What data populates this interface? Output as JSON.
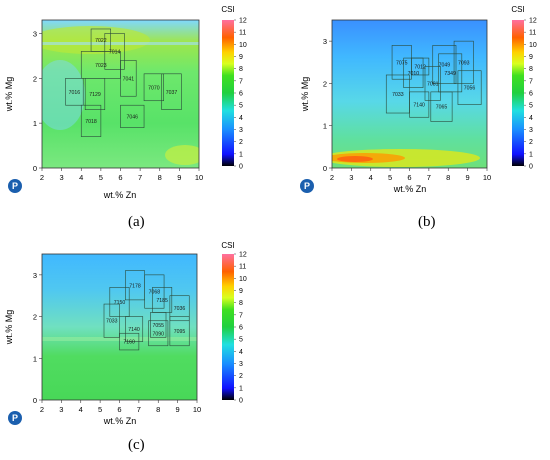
{
  "chart_data": [
    {
      "panel": "(a)",
      "type": "heatmap",
      "xlabel": "wt.% Zn",
      "ylabel": "wt.% Mg",
      "xlim": [
        2,
        10
      ],
      "ylim": [
        0,
        3.3
      ],
      "xticks": [
        2,
        3,
        4,
        5,
        6,
        7,
        8,
        9,
        10
      ],
      "yticks": [
        0,
        1,
        2,
        3
      ],
      "colorbar": {
        "label": "CSI",
        "min": 0,
        "max": 12,
        "ticks": [
          0,
          1,
          2,
          3,
          4,
          5,
          6,
          7,
          8,
          9,
          10,
          11,
          12
        ]
      },
      "alloys": [
        {
          "name": "7022",
          "x0": 4.5,
          "x1": 5.5,
          "y0": 2.6,
          "y1": 3.1
        },
        {
          "name": "7014",
          "x0": 5.2,
          "x1": 6.2,
          "y0": 2.2,
          "y1": 3.0
        },
        {
          "name": "7023",
          "x0": 4.0,
          "x1": 6.0,
          "y0": 2.0,
          "y1": 2.6
        },
        {
          "name": "7041",
          "x0": 6.0,
          "x1": 6.8,
          "y0": 1.6,
          "y1": 2.4
        },
        {
          "name": "7070",
          "x0": 7.2,
          "x1": 8.2,
          "y0": 1.5,
          "y1": 2.1
        },
        {
          "name": "7016",
          "x0": 3.2,
          "x1": 4.1,
          "y0": 1.4,
          "y1": 2.0
        },
        {
          "name": "7129",
          "x0": 4.2,
          "x1": 5.2,
          "y0": 1.3,
          "y1": 2.0
        },
        {
          "name": "7037",
          "x0": 8.1,
          "x1": 9.1,
          "y0": 1.3,
          "y1": 2.1
        },
        {
          "name": "7018",
          "x0": 4.0,
          "x1": 5.0,
          "y0": 0.7,
          "y1": 1.4
        },
        {
          "name": "7046",
          "x0": 6.0,
          "x1": 7.2,
          "y0": 0.9,
          "y1": 1.4
        }
      ]
    },
    {
      "panel": "(b)",
      "type": "heatmap",
      "xlabel": "wt.% Zn",
      "ylabel": "wt.% Mg",
      "xlim": [
        2,
        10
      ],
      "ylim": [
        0,
        3.5
      ],
      "xticks": [
        2,
        3,
        4,
        5,
        6,
        7,
        8,
        9,
        10
      ],
      "yticks": [
        0,
        1,
        2,
        3
      ],
      "colorbar": {
        "label": "CSI",
        "min": 0,
        "max": 12,
        "ticks": [
          0,
          1,
          2,
          3,
          4,
          5,
          6,
          7,
          8,
          9,
          10,
          11,
          12
        ]
      },
      "alloys": [
        {
          "name": "7075",
          "x0": 5.1,
          "x1": 6.1,
          "y0": 2.1,
          "y1": 2.9
        },
        {
          "name": "7049",
          "x0": 7.2,
          "x1": 8.4,
          "y0": 2.0,
          "y1": 2.9
        },
        {
          "name": "7093",
          "x0": 8.3,
          "x1": 9.3,
          "y0": 2.0,
          "y1": 3.0
        },
        {
          "name": "7012",
          "x0": 6.1,
          "x1": 7.0,
          "y0": 2.2,
          "y1": 2.6
        },
        {
          "name": "7010",
          "x0": 5.7,
          "x1": 6.7,
          "y0": 1.9,
          "y1": 2.6
        },
        {
          "name": "7081",
          "x0": 6.8,
          "x1": 7.6,
          "y0": 1.6,
          "y1": 2.4
        },
        {
          "name": "7349",
          "x0": 7.5,
          "x1": 8.7,
          "y0": 1.8,
          "y1": 2.7
        },
        {
          "name": "7033",
          "x0": 4.8,
          "x1": 6.0,
          "y0": 1.3,
          "y1": 2.2
        },
        {
          "name": "7140",
          "x0": 6.0,
          "x1": 7.0,
          "y0": 1.2,
          "y1": 1.8
        },
        {
          "name": "7056",
          "x0": 8.5,
          "x1": 9.7,
          "y0": 1.5,
          "y1": 2.3
        },
        {
          "name": "7065",
          "x0": 7.1,
          "x1": 8.2,
          "y0": 1.1,
          "y1": 1.8
        }
      ]
    },
    {
      "panel": "(c)",
      "type": "heatmap",
      "xlabel": "wt.% Zn",
      "ylabel": "wt.% Mg",
      "xlim": [
        2,
        10
      ],
      "ylim": [
        0,
        3.5
      ],
      "xticks": [
        2,
        3,
        4,
        5,
        6,
        7,
        8,
        9,
        10
      ],
      "yticks": [
        0,
        1,
        2,
        3
      ],
      "colorbar": {
        "label": "CSI",
        "min": 0,
        "max": 12,
        "ticks": [
          0,
          1,
          2,
          3,
          4,
          5,
          6,
          7,
          8,
          9,
          10,
          11,
          12
        ]
      },
      "alloys": [
        {
          "name": "7178",
          "x0": 6.3,
          "x1": 7.3,
          "y0": 2.4,
          "y1": 3.1
        },
        {
          "name": "7068",
          "x0": 7.3,
          "x1": 8.3,
          "y0": 2.2,
          "y1": 3.0
        },
        {
          "name": "7150",
          "x0": 5.5,
          "x1": 6.5,
          "y0": 2.0,
          "y1": 2.7
        },
        {
          "name": "7185",
          "x0": 7.7,
          "x1": 8.7,
          "y0": 2.1,
          "y1": 2.7
        },
        {
          "name": "7036",
          "x0": 8.6,
          "x1": 9.6,
          "y0": 1.9,
          "y1": 2.5
        },
        {
          "name": "7055",
          "x0": 7.6,
          "x1": 8.4,
          "y0": 1.5,
          "y1": 2.1
        },
        {
          "name": "7033",
          "x0": 5.2,
          "x1": 6.0,
          "y0": 1.5,
          "y1": 2.3
        },
        {
          "name": "7140",
          "x0": 6.3,
          "x1": 7.2,
          "y0": 1.4,
          "y1": 2.0
        },
        {
          "name": "7090",
          "x0": 7.5,
          "x1": 8.5,
          "y0": 1.3,
          "y1": 1.9
        },
        {
          "name": "7095",
          "x0": 8.6,
          "x1": 9.6,
          "y0": 1.3,
          "y1": 2.0
        },
        {
          "name": "7160",
          "x0": 6.0,
          "x1": 7.0,
          "y0": 1.2,
          "y1": 1.6
        }
      ]
    }
  ],
  "logo_text": "P"
}
